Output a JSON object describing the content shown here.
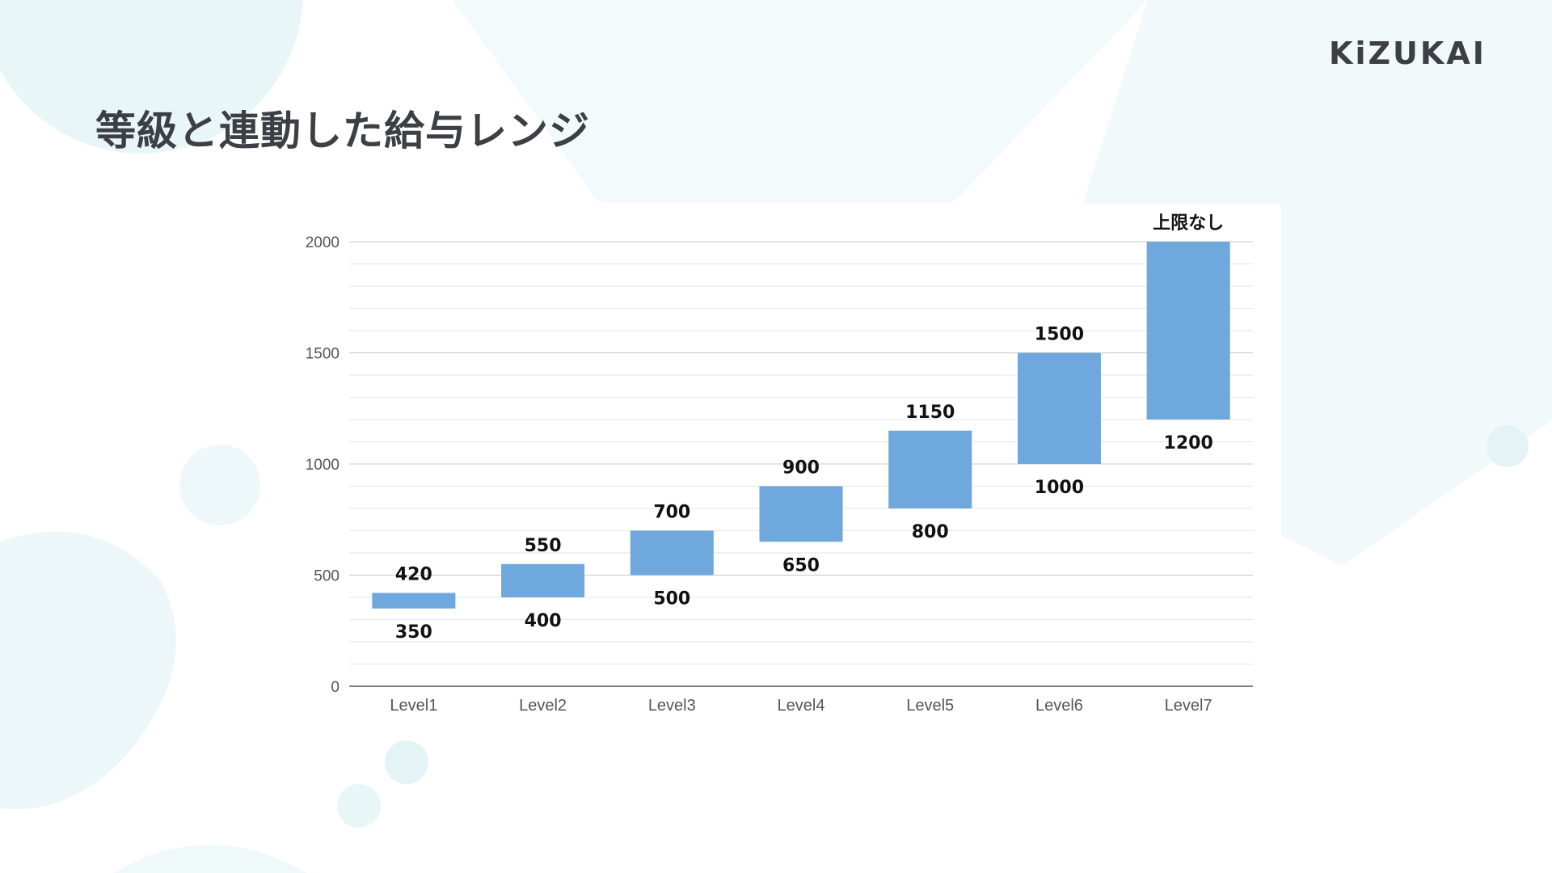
{
  "slide": {
    "title": "等級と連動した給与レンジ",
    "logo_text": "KiZUKAI"
  },
  "colors": {
    "bar": "#6fa8dc",
    "grid_major": "#c8c8c8",
    "grid_minor": "#e6e6e6",
    "axis": "#555555",
    "decor": "#e8f6f8"
  },
  "chart_data": {
    "type": "bar",
    "subtype": "floating-range",
    "categories": [
      "Level1",
      "Level2",
      "Level3",
      "Level4",
      "Level5",
      "Level6",
      "Level7"
    ],
    "series": [
      {
        "low": [
          350,
          400,
          500,
          650,
          800,
          1000,
          1200
        ],
        "high": [
          420,
          550,
          700,
          900,
          1150,
          1500,
          2000
        ]
      }
    ],
    "low_labels": [
      "350",
      "400",
      "500",
      "650",
      "800",
      "1000",
      "1200"
    ],
    "high_labels": [
      "420",
      "550",
      "700",
      "900",
      "1150",
      "1500",
      "上限なし"
    ],
    "ylim": [
      0,
      2000
    ],
    "yticks": [
      0,
      500,
      1000,
      1500,
      2000
    ],
    "minor_step": 100,
    "grid": true,
    "legend": "none",
    "title": "",
    "xlabel": "",
    "ylabel": ""
  }
}
